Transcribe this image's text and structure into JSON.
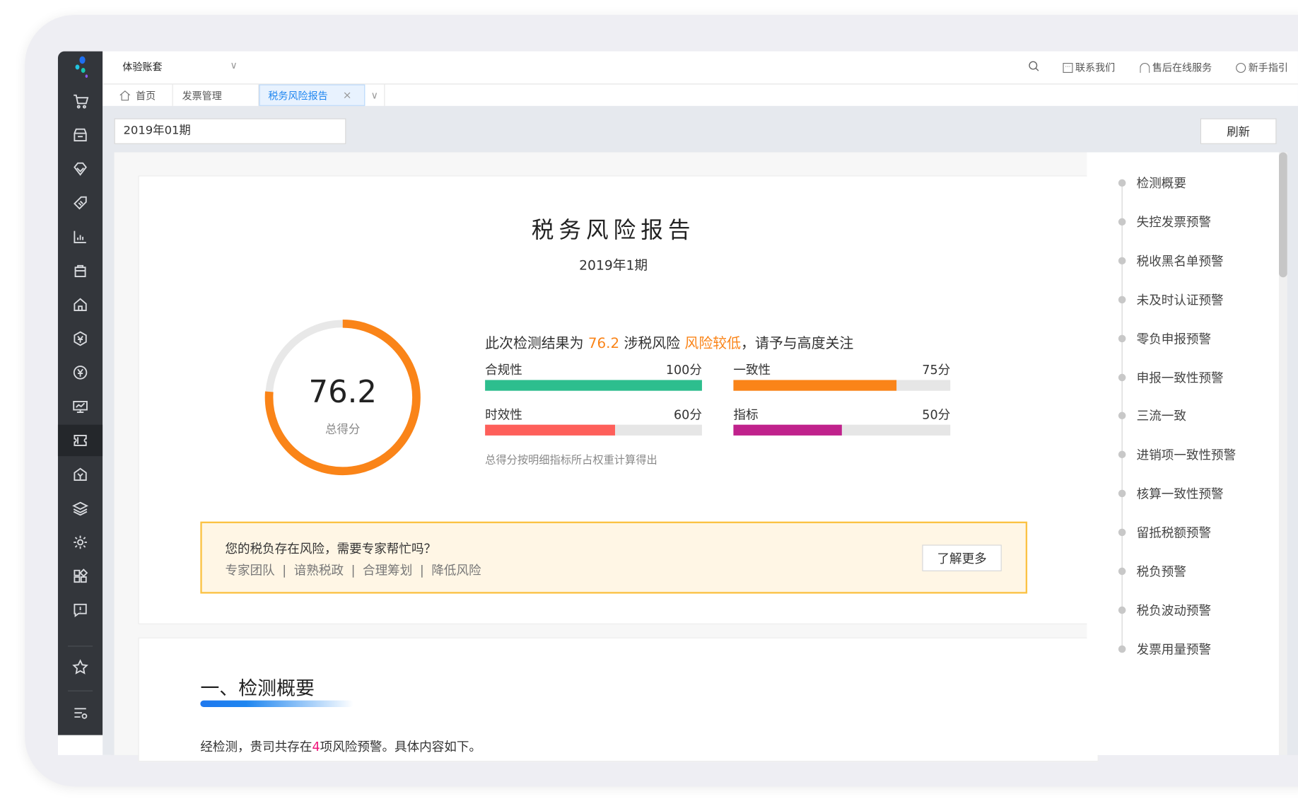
{
  "topbar": {
    "account": "体验账套",
    "search_icon": "search-icon",
    "links": [
      {
        "label": "联系我们",
        "icon": "chat-icon"
      },
      {
        "label": "售后在线服务",
        "icon": "headset-icon"
      },
      {
        "label": "新手指引",
        "icon": "compass-icon"
      }
    ]
  },
  "tabs": [
    {
      "label": "首页",
      "icon": "home-icon"
    },
    {
      "label": "发票管理"
    },
    {
      "label": "税务风险报告",
      "active": true
    }
  ],
  "toolbar": {
    "period_value": "2019年01期",
    "refresh_label": "刷新"
  },
  "report": {
    "title": "税务风险报告",
    "subtitle": "2019年1期",
    "score": {
      "value": 76.2,
      "text": "76.2",
      "label": "总得分",
      "max": 100
    },
    "headline": {
      "prefix": "此次检测结果为 ",
      "score": "76.2",
      "mid": " 涉税风险 ",
      "level": "风险较低",
      "suffix": "，请予与高度关注"
    },
    "metrics": [
      {
        "name": "合规性",
        "score": 100,
        "text": "100分",
        "color": "#2dbe8e"
      },
      {
        "name": "一致性",
        "score": 75,
        "text": "75分",
        "color": "#fa8418"
      },
      {
        "name": "时效性",
        "score": 60,
        "text": "60分",
        "color": "#fe5f5a"
      },
      {
        "name": "指标",
        "score": 50,
        "text": "50分",
        "color": "#c0228c"
      }
    ],
    "note": "总得分按明细指标所占权重计算得出",
    "banner": {
      "title": "您的税负存在风险，需要专家帮忙吗？",
      "tags": [
        "专家团队",
        "谙熟税政",
        "合理筹划",
        "降低风险"
      ],
      "button": "了解更多"
    },
    "section1": {
      "heading": "一、检测概要",
      "text_prefix": "经检测，贵司共存在",
      "count": "4",
      "text_suffix": "项风险预警。具体内容如下。"
    }
  },
  "right_nav": [
    "检测概要",
    "失控发票预警",
    "税收黑名单预警",
    "未及时认证预警",
    "零负申报预警",
    "申报一致性预警",
    "三流一致",
    "进销项一致性预警",
    "核算一致性预警",
    "留抵税额预警",
    "税负预警",
    "税负波动预警",
    "发票用量预警"
  ],
  "sidebar": {
    "icons": [
      "cart-icon",
      "store-icon",
      "diamond-icon",
      "tag-icon",
      "report-icon",
      "bag-icon",
      "home-building-icon",
      "yen-shield-icon",
      "yen-circle-icon",
      "chart-board-icon",
      "ticket-icon",
      "bank-icon",
      "layers-icon",
      "gear-icon",
      "apps-icon",
      "feedback-icon",
      "star-icon",
      "menu-settings-icon"
    ],
    "active": "ticket-icon"
  },
  "colors": {
    "accent": "#1f86f0",
    "orange": "#fa8418",
    "sidebar": "#33363b"
  }
}
